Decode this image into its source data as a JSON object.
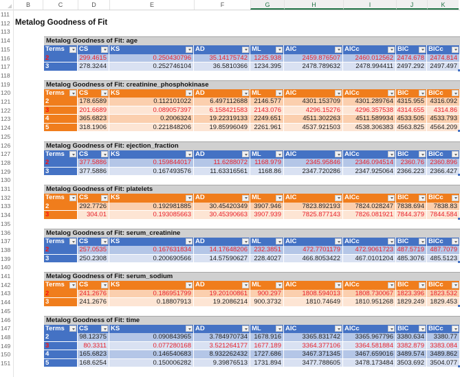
{
  "sheet": {
    "columns": [
      "B",
      "C",
      "D",
      "E",
      "F",
      "G",
      "H",
      "I",
      "J",
      "K"
    ],
    "selected_columns": [
      "G",
      "H",
      "I",
      "J",
      "K"
    ],
    "rows": [
      111,
      112,
      113,
      114,
      115,
      116,
      117,
      118,
      119,
      120,
      121,
      122,
      123,
      124,
      125,
      126,
      127,
      128,
      129,
      130,
      131,
      132,
      133,
      134,
      135,
      136,
      137,
      138,
      139,
      140,
      141,
      142,
      143,
      144,
      145,
      146,
      147,
      148,
      149,
      150,
      151
    ]
  },
  "page_title": "Metalog Goodness of Fit",
  "headers": [
    "Terms",
    "CS",
    "KS",
    "AD",
    "ML",
    "AIC",
    "AICc",
    "BIC",
    "BICc"
  ],
  "colors": {
    "blue_header": "#4472c4",
    "blue_band1": "#b4c6e7",
    "blue_band2": "#d9e1f2",
    "orange_header": "#f07d1c",
    "orange_band1": "#fbcfae",
    "orange_band2": "#fde5d4",
    "highlight_text": "#e8202b",
    "title_bar": "#d0d0d0"
  },
  "tables": [
    {
      "title": "Metalog Goodness of Fit: age",
      "theme": "blue",
      "best_row": 0,
      "rows": [
        [
          "2",
          "299.4615",
          "0.250430796",
          "35.14175742",
          "1225.938",
          "2459.876507",
          "2460.012562",
          "2474.678",
          "2474.814"
        ],
        [
          "3",
          "278.3244",
          "0.252746104",
          "36.5810366",
          "1234.395",
          "2478.789632",
          "2478.994411",
          "2497.292",
          "2497.497"
        ]
      ]
    },
    {
      "title": "Metalog Goodness of Fit: creatinine_phosphokinase",
      "theme": "orange",
      "best_row": 1,
      "rows": [
        [
          "2",
          "178.6589",
          "0.112101022",
          "6.497112688",
          "2146.577",
          "4301.153709",
          "4301.289764",
          "4315.955",
          "4316.092"
        ],
        [
          "3",
          "201.6689",
          "0.089057397",
          "6.158421583",
          "2143.076",
          "4296.15276",
          "4296.357538",
          "4314.655",
          "4314.86"
        ],
        [
          "4",
          "365.6823",
          "0.2006324",
          "19.22319133",
          "2249.651",
          "4511.302263",
          "4511.589934",
          "4533.505",
          "4533.793"
        ],
        [
          "5",
          "318.1906",
          "0.221848206",
          "19.85996049",
          "2261.961",
          "4537.921503",
          "4538.306383",
          "4563.825",
          "4564.209"
        ]
      ]
    },
    {
      "title": "Metalog Goodness of Fit: ejection_fraction",
      "theme": "blue",
      "best_row": 0,
      "rows": [
        [
          "2",
          "377.5886",
          "0.159844017",
          "11.6288072",
          "1168.979",
          "2345.95846",
          "2346.094514",
          "2360.76",
          "2360.896"
        ],
        [
          "3",
          "377.5886",
          "0.167493576",
          "11.63316561",
          "1168.86",
          "2347.720286",
          "2347.925064",
          "2366.223",
          "2366.427"
        ]
      ]
    },
    {
      "title": "Metalog Goodness of Fit: platelets",
      "theme": "orange",
      "best_row": 1,
      "rows": [
        [
          "2",
          "292.7726",
          "0.192981885",
          "30.45420349",
          "3907.946",
          "7823.892193",
          "7824.028247",
          "7838.694",
          "7838.83"
        ],
        [
          "3",
          "304.01",
          "0.193085663",
          "30.45390663",
          "3907.939",
          "7825.877143",
          "7826.081921",
          "7844.379",
          "7844.584"
        ]
      ]
    },
    {
      "title": "Metalog Goodness of Fit: serum_creatinine",
      "theme": "blue",
      "best_row": 0,
      "rows": [
        [
          "2",
          "257.0535",
          "0.167631834",
          "14.17648206",
          "232.3851",
          "472.7701179",
          "472.9061723",
          "487.5719",
          "487.7079"
        ],
        [
          "3",
          "250.2308",
          "0.200690566",
          "14.57590627",
          "228.4027",
          "466.8053422",
          "467.0101204",
          "485.3076",
          "485.5123"
        ]
      ]
    },
    {
      "title": "Metalog Goodness of Fit: serum_sodium",
      "theme": "orange",
      "best_row": 0,
      "rows": [
        [
          "2",
          "241.2676",
          "0.186951799",
          "19.20100861",
          "900.297",
          "1808.594013",
          "1808.730067",
          "1823.396",
          "1823.532"
        ],
        [
          "3",
          "241.2676",
          "0.18807913",
          "19.2086214",
          "900.3732",
          "1810.74649",
          "1810.951268",
          "1829.249",
          "1829.453"
        ]
      ]
    },
    {
      "title": "Metalog Goodness of Fit: time",
      "theme": "blue",
      "best_row": 1,
      "rows": [
        [
          "2",
          "98.12375",
          "0.090843965",
          "3.784970734",
          "1678.916",
          "3365.831742",
          "3365.967796",
          "3380.634",
          "3380.77"
        ],
        [
          "3",
          "80.3311",
          "0.077280168",
          "3.521264177",
          "1677.189",
          "3364.377106",
          "3364.581884",
          "3382.879",
          "3383.084"
        ],
        [
          "4",
          "165.6823",
          "0.146540683",
          "8.932262432",
          "1727.686",
          "3467.371345",
          "3467.659016",
          "3489.574",
          "3489.862"
        ],
        [
          "5",
          "168.6254",
          "0.150006282",
          "9.39876513",
          "1731.894",
          "3477.788605",
          "3478.173484",
          "3503.692",
          "3504.077"
        ]
      ]
    }
  ]
}
